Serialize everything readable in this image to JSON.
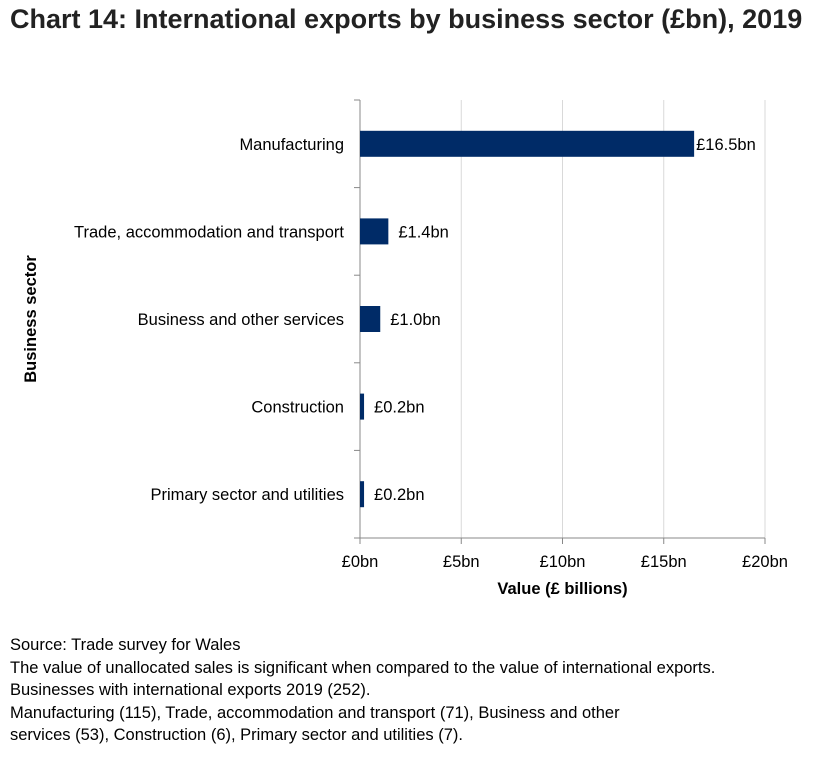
{
  "title": "Chart 14: International exports by business sector (£bn), 2019",
  "chart_data": {
    "type": "bar",
    "orientation": "horizontal",
    "title": "Chart 14: International exports by business sector (£bn), 2019",
    "categories": [
      "Manufacturing",
      "Trade, accommodation and transport",
      "Business and other services",
      "Construction",
      "Primary sector and utilities"
    ],
    "values": [
      16.5,
      1.4,
      1.0,
      0.2,
      0.2
    ],
    "data_labels": [
      "£16.5bn",
      "£1.4bn",
      "£1.0bn",
      "£0.2bn",
      "£0.2bn"
    ],
    "xlabel": "Value (£ billions)",
    "ylabel": "Business sector",
    "xlim": [
      0,
      20
    ],
    "xticks": [
      0,
      5,
      10,
      15,
      20
    ],
    "xtick_labels": [
      "£0bn",
      "£5bn",
      "£10bn",
      "£15bn",
      "£20bn"
    ],
    "grid": "vertical",
    "legend": "none",
    "bar_color": "#002b67",
    "grid_color": "#d9d9d9"
  },
  "notes": [
    "Source: Trade survey for Wales",
    "The value of unallocated sales is significant when compared to the value of international exports.",
    "Businesses with international exports 2019 (252).",
    "Manufacturing (115), Trade, accommodation and transport (71), Business and other",
    "services (53), Construction (6), Primary sector and utilities (7)."
  ]
}
